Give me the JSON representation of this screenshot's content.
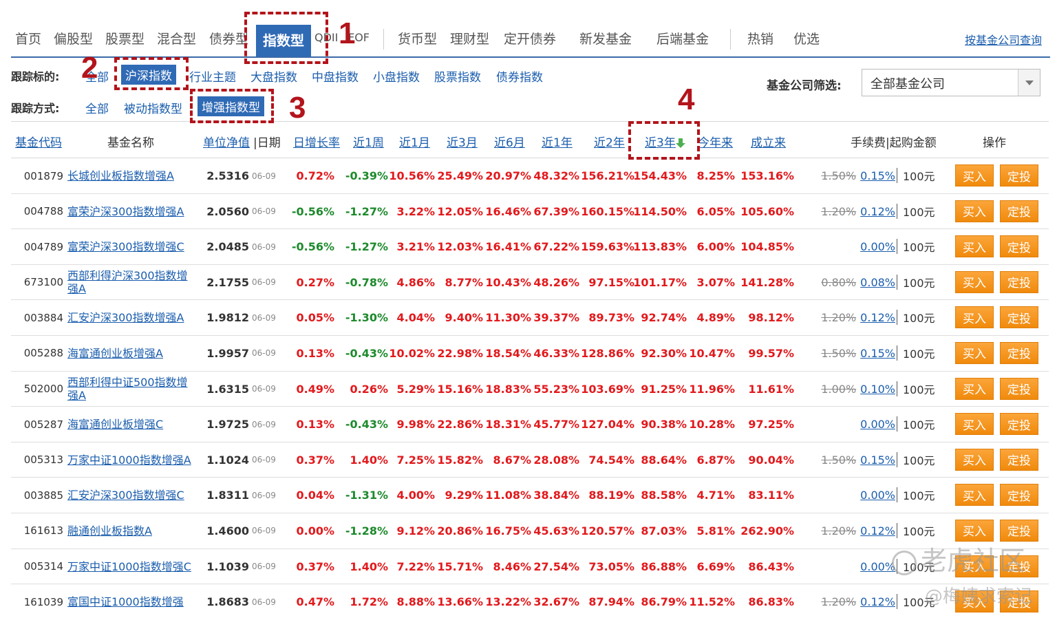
{
  "topnav": {
    "tabs": [
      "首页",
      "偏股型",
      "股票型",
      "混合型",
      "债券型",
      "指数型",
      "QDII",
      "FOF",
      "货币型",
      "理财型",
      "定开债券",
      "新发基金",
      "后端基金",
      "热销",
      "优选"
    ],
    "company_query": "按基金公司查询"
  },
  "filters": {
    "target_label": "跟踪标的:",
    "target_items": [
      "全部",
      "沪深指数",
      "行业主题",
      "大盘指数",
      "中盘指数",
      "小盘指数",
      "股票指数",
      "债券指数"
    ],
    "method_label": "跟踪方式:",
    "method_items": [
      "全部",
      "被动指数型",
      "增强指数型"
    ],
    "company_label": "基金公司筛选:",
    "company_value": "全部基金公司"
  },
  "annotations": [
    "1",
    "2",
    "3",
    "4"
  ],
  "table": {
    "headers": {
      "code": "基金代码",
      "name": "基金名称",
      "nav": "单位净值",
      "date": "|日期",
      "day": "日增长率",
      "w1": "近1周",
      "m1": "近1月",
      "m3": "近3月",
      "m6": "近6月",
      "y1": "近1年",
      "y2": "近2年",
      "y3": "近3年",
      "ytd": "今年来",
      "inc": "成立来",
      "fee": "手续费|起购金额",
      "op": "操作"
    },
    "buy_label": "买入",
    "plan_label": "定投",
    "rows": [
      {
        "code": "001879",
        "name": "长城创业板指数增强A",
        "nav": "2.5316",
        "date": "06-09",
        "day": "0.72%",
        "w1": "-0.39%",
        "m1": "10.56%",
        "m3": "25.49%",
        "m6": "20.97%",
        "y1": "48.32%",
        "y2": "156.21%",
        "y3": "154.43%",
        "ytd": "8.25%",
        "inc": "153.16%",
        "fee_orig": "1.50%",
        "fee": "0.15%",
        "min": "100元"
      },
      {
        "code": "004788",
        "name": "富荣沪深300指数增强A",
        "nav": "2.0560",
        "date": "06-09",
        "day": "-0.56%",
        "w1": "-1.27%",
        "m1": "3.22%",
        "m3": "12.05%",
        "m6": "16.46%",
        "y1": "67.39%",
        "y2": "160.15%",
        "y3": "114.50%",
        "ytd": "6.05%",
        "inc": "105.60%",
        "fee_orig": "1.20%",
        "fee": "0.12%",
        "min": "100元"
      },
      {
        "code": "004789",
        "name": "富荣沪深300指数增强C",
        "nav": "2.0485",
        "date": "06-09",
        "day": "-0.56%",
        "w1": "-1.27%",
        "m1": "3.21%",
        "m3": "12.03%",
        "m6": "16.41%",
        "y1": "67.22%",
        "y2": "159.63%",
        "y3": "113.83%",
        "ytd": "6.00%",
        "inc": "104.85%",
        "fee_orig": "",
        "fee": "0.00%",
        "min": "100元"
      },
      {
        "code": "673100",
        "name": "西部利得沪深300指数增强A",
        "nav": "2.1755",
        "date": "06-09",
        "day": "0.27%",
        "w1": "-0.78%",
        "m1": "4.86%",
        "m3": "8.77%",
        "m6": "10.43%",
        "y1": "48.26%",
        "y2": "97.15%",
        "y3": "101.17%",
        "ytd": "3.07%",
        "inc": "141.28%",
        "fee_orig": "0.80%",
        "fee": "0.08%",
        "min": "100元"
      },
      {
        "code": "003884",
        "name": "汇安沪深300指数增强A",
        "nav": "1.9812",
        "date": "06-09",
        "day": "0.05%",
        "w1": "-1.30%",
        "m1": "4.04%",
        "m3": "9.40%",
        "m6": "11.30%",
        "y1": "39.37%",
        "y2": "89.73%",
        "y3": "92.74%",
        "ytd": "4.89%",
        "inc": "98.12%",
        "fee_orig": "1.20%",
        "fee": "0.12%",
        "min": "100元"
      },
      {
        "code": "005288",
        "name": "海富通创业板增强A",
        "nav": "1.9957",
        "date": "06-09",
        "day": "0.13%",
        "w1": "-0.43%",
        "m1": "10.02%",
        "m3": "22.98%",
        "m6": "18.54%",
        "y1": "46.33%",
        "y2": "128.86%",
        "y3": "92.30%",
        "ytd": "10.47%",
        "inc": "99.57%",
        "fee_orig": "1.50%",
        "fee": "0.15%",
        "min": "100元"
      },
      {
        "code": "502000",
        "name": "西部利得中证500指数增强A",
        "nav": "1.6315",
        "date": "06-09",
        "day": "0.49%",
        "w1": "0.26%",
        "m1": "5.29%",
        "m3": "15.16%",
        "m6": "18.83%",
        "y1": "55.23%",
        "y2": "103.69%",
        "y3": "91.25%",
        "ytd": "11.96%",
        "inc": "11.61%",
        "fee_orig": "1.00%",
        "fee": "0.10%",
        "min": "100元"
      },
      {
        "code": "005287",
        "name": "海富通创业板增强C",
        "nav": "1.9725",
        "date": "06-09",
        "day": "0.13%",
        "w1": "-0.43%",
        "m1": "9.98%",
        "m3": "22.86%",
        "m6": "18.31%",
        "y1": "45.77%",
        "y2": "127.04%",
        "y3": "90.38%",
        "ytd": "10.28%",
        "inc": "97.25%",
        "fee_orig": "",
        "fee": "0.00%",
        "min": "100元"
      },
      {
        "code": "005313",
        "name": "万家中证1000指数增强A",
        "nav": "1.1024",
        "date": "06-09",
        "day": "0.37%",
        "w1": "1.40%",
        "m1": "7.25%",
        "m3": "15.82%",
        "m6": "8.67%",
        "y1": "28.08%",
        "y2": "74.54%",
        "y3": "88.64%",
        "ytd": "6.87%",
        "inc": "90.04%",
        "fee_orig": "1.50%",
        "fee": "0.15%",
        "min": "100元"
      },
      {
        "code": "003885",
        "name": "汇安沪深300指数增强C",
        "nav": "1.8311",
        "date": "06-09",
        "day": "0.04%",
        "w1": "-1.31%",
        "m1": "4.00%",
        "m3": "9.29%",
        "m6": "11.08%",
        "y1": "38.84%",
        "y2": "88.19%",
        "y3": "88.58%",
        "ytd": "4.71%",
        "inc": "83.11%",
        "fee_orig": "",
        "fee": "0.00%",
        "min": "100元"
      },
      {
        "code": "161613",
        "name": "融通创业板指数A",
        "nav": "1.4600",
        "date": "06-09",
        "day": "0.00%",
        "w1": "-1.28%",
        "m1": "9.12%",
        "m3": "20.86%",
        "m6": "16.75%",
        "y1": "45.63%",
        "y2": "120.57%",
        "y3": "87.03%",
        "ytd": "5.81%",
        "inc": "262.90%",
        "fee_orig": "1.20%",
        "fee": "0.12%",
        "min": "100元"
      },
      {
        "code": "005314",
        "name": "万家中证1000指数增强C",
        "nav": "1.1039",
        "date": "06-09",
        "day": "0.37%",
        "w1": "1.40%",
        "m1": "7.22%",
        "m3": "15.71%",
        "m6": "8.46%",
        "y1": "27.54%",
        "y2": "73.05%",
        "y3": "86.88%",
        "ytd": "6.69%",
        "inc": "86.43%",
        "fee_orig": "",
        "fee": "0.00%",
        "min": "100元"
      },
      {
        "code": "161039",
        "name": "富国中证1000指数增强",
        "nav": "1.8683",
        "date": "06-09",
        "day": "0.47%",
        "w1": "1.72%",
        "m1": "8.88%",
        "m3": "13.66%",
        "m6": "13.22%",
        "y1": "32.67%",
        "y2": "87.94%",
        "y3": "86.79%",
        "ytd": "11.52%",
        "inc": "86.83%",
        "fee_orig": "1.20%",
        "fee": "0.12%",
        "min": "100元"
      }
    ]
  },
  "watermark": {
    "site": "老虎社区",
    "author": "@梅姨求索记"
  },
  "colors": {
    "accent": "#2f6ab5",
    "positive": "#e2191c",
    "negative": "#1d8a2c",
    "annotation": "#b3141b",
    "button": "#f39518"
  }
}
